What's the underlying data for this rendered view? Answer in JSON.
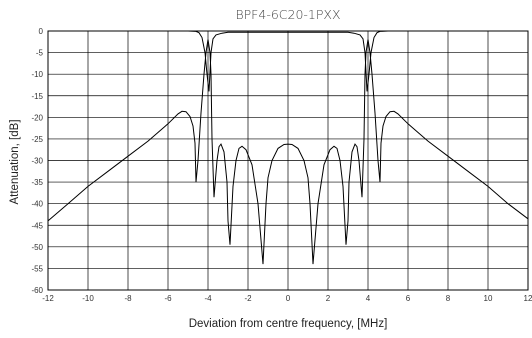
{
  "chart_data": {
    "type": "line",
    "title": "BPF4-6C20-1PXX",
    "xlabel": "Deviation from centre frequency, [MHz]",
    "ylabel": "Attenuation, [dB]",
    "xlim": [
      -12,
      12
    ],
    "ylim": [
      -60,
      0
    ],
    "xticks": [
      -12,
      -10,
      -8,
      -6,
      -4,
      -2,
      0,
      2,
      4,
      6,
      8,
      10,
      12
    ],
    "yticks": [
      0,
      -5,
      -10,
      -15,
      -20,
      -25,
      -30,
      -35,
      -40,
      -45,
      -50,
      -55,
      -60
    ],
    "grid": true,
    "series": [
      {
        "x": [
          -12,
          -11,
          -10,
          -9,
          -8,
          -7,
          -6,
          -5.5,
          -5.3,
          -5.1,
          -4.9,
          -4.75,
          -4.65,
          -4.6,
          -4.5,
          -4.35,
          -4.2,
          -4.1,
          -4.0,
          -3.9,
          -3.85,
          -3.8,
          -3.7,
          -3.55,
          -3.45,
          -3.35,
          -3.2,
          -3.05,
          -3.0,
          -2.9,
          -2.75,
          -2.6,
          -2.45,
          -2.3,
          -2.1,
          -1.8,
          -1.5,
          -1.25,
          -1.1,
          -1.0,
          -0.8,
          -0.5,
          -0.2,
          0,
          0.2,
          0.5,
          0.8,
          1.0,
          1.1,
          1.25,
          1.5,
          1.8,
          2.1,
          2.3,
          2.45,
          2.6,
          2.75,
          2.9,
          3.0,
          3.05,
          3.2,
          3.35,
          3.45,
          3.55,
          3.7,
          3.8,
          3.85,
          3.9,
          4.0,
          4.1,
          4.2,
          4.35,
          4.5,
          4.6,
          4.65,
          4.75,
          4.9,
          5.1,
          5.3,
          5.5,
          6,
          7,
          8,
          9,
          10,
          11,
          12
        ],
        "y": [
          -44,
          -40,
          -36,
          -32.5,
          -29,
          -25.5,
          -21.5,
          -19.2,
          -18.6,
          -18.7,
          -19.8,
          -22,
          -26,
          -35,
          -30,
          -19,
          -10,
          -5,
          -2,
          -5,
          -10,
          -25,
          -38.5,
          -30,
          -26.8,
          -26.2,
          -28,
          -35,
          -44,
          -49.5,
          -36,
          -30,
          -27.2,
          -26.7,
          -27.5,
          -31,
          -40,
          -54,
          -40,
          -34,
          -30,
          -27.2,
          -26.3,
          -26.2,
          -26.3,
          -27.2,
          -30,
          -34,
          -40,
          -54,
          -40,
          -31,
          -27.5,
          -26.7,
          -27.2,
          -30,
          -36,
          -49.5,
          -44,
          -35,
          -28,
          -26.2,
          -26.8,
          -30,
          -38.5,
          -25,
          -10,
          -5,
          -2,
          -5,
          -10,
          -19,
          -30,
          -35,
          -26,
          -22,
          -19.8,
          -18.7,
          -18.6,
          -19.2,
          -21.5,
          -25.5,
          -29,
          -32.5,
          -36,
          -40,
          -43.5
        ]
      },
      {
        "x": [
          -12,
          -6,
          -5,
          -4.6,
          -4.45,
          -4.3,
          -4.15,
          -4.05,
          -3.95,
          -3.85,
          -3.75,
          -3.6,
          -3.3,
          -3.0,
          0,
          3.0,
          3.3,
          3.6,
          3.75,
          3.85,
          3.95,
          4.05,
          4.15,
          4.3,
          4.45,
          4.6,
          5,
          6,
          12
        ],
        "y": [
          0,
          0,
          0,
          -0.1,
          -0.4,
          -1.5,
          -5,
          -10,
          -14,
          -5,
          -1.8,
          -0.9,
          -0.5,
          -0.3,
          -0.3,
          -0.3,
          -0.5,
          -0.9,
          -1.8,
          -5,
          -14,
          -10,
          -5,
          -1.5,
          -0.4,
          -0.1,
          0,
          0,
          0
        ]
      }
    ]
  }
}
